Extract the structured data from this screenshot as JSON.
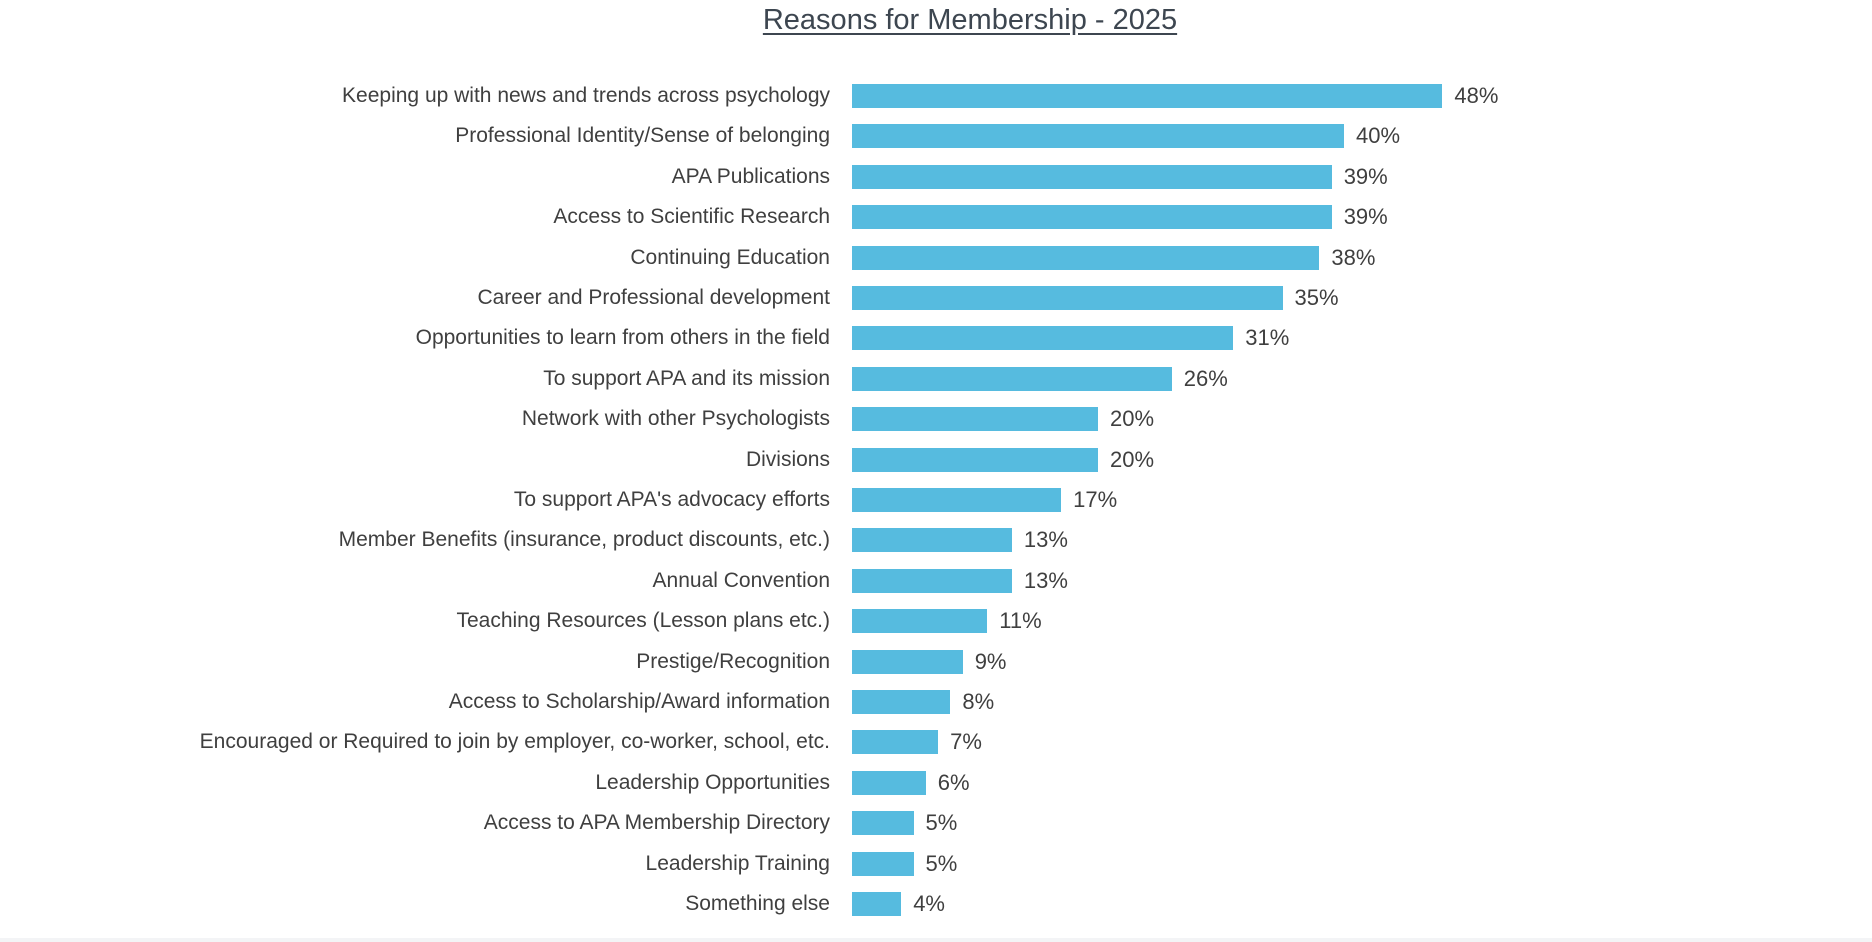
{
  "chart_data": {
    "type": "bar",
    "orientation": "horizontal",
    "title": "Reasons for Membership - 2025",
    "xlabel": "",
    "ylabel": "",
    "xlim": [
      0,
      50
    ],
    "grid": false,
    "bar_color": "#56bbdf",
    "categories": [
      "Keeping up with news and trends across psychology",
      "Professional Identity/Sense of belonging",
      "APA Publications",
      "Access to Scientific Research",
      "Continuing Education",
      "Career and Professional development",
      "Opportunities to learn from others in the field",
      "To support APA and its mission",
      "Network with other Psychologists",
      "Divisions",
      "To support APA's advocacy efforts",
      "Member Benefits (insurance, product discounts, etc.)",
      "Annual Convention",
      "Teaching Resources (Lesson plans etc.)",
      "Prestige/Recognition",
      "Access to Scholarship/Award information",
      "Encouraged or Required to join by employer, co-worker, school, etc.",
      "Leadership Opportunities",
      "Access to APA Membership Directory",
      "Leadership Training",
      "Something else"
    ],
    "values": [
      48,
      40,
      39,
      39,
      38,
      35,
      31,
      26,
      20,
      20,
      17,
      13,
      13,
      11,
      9,
      8,
      7,
      6,
      5,
      5,
      4
    ],
    "value_labels": [
      "48%",
      "40%",
      "39%",
      "39%",
      "38%",
      "35%",
      "31%",
      "26%",
      "20%",
      "20%",
      "17%",
      "13%",
      "13%",
      "11%",
      "9%",
      "8%",
      "7%",
      "6%",
      "5%",
      "5%",
      "4%"
    ]
  }
}
